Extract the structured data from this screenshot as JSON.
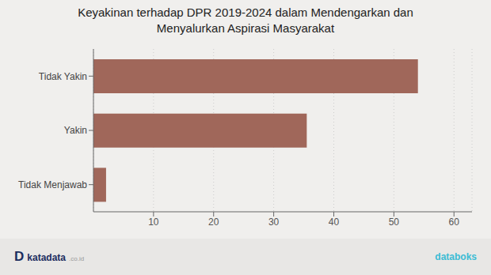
{
  "chart_data": {
    "type": "bar",
    "title": "Keyakinan terhadap DPR 2019-2024 dalam Mendengarkan dan",
    "subtitle": "Menyalurkan Aspirasi Masyarakat",
    "categories": [
      "Tidak Menjawab",
      "Yakin",
      "Tidak Yakin"
    ],
    "values": [
      2.1,
      35.5,
      54.0
    ],
    "color": "#a0675a",
    "orientation": "horizontal",
    "xlim": [
      0,
      63
    ],
    "xticks": [
      10,
      20,
      30,
      40,
      50,
      60
    ],
    "grid": true,
    "annotations": [
      "D",
      "katadata",
      ".co.id",
      "databoks"
    ]
  }
}
